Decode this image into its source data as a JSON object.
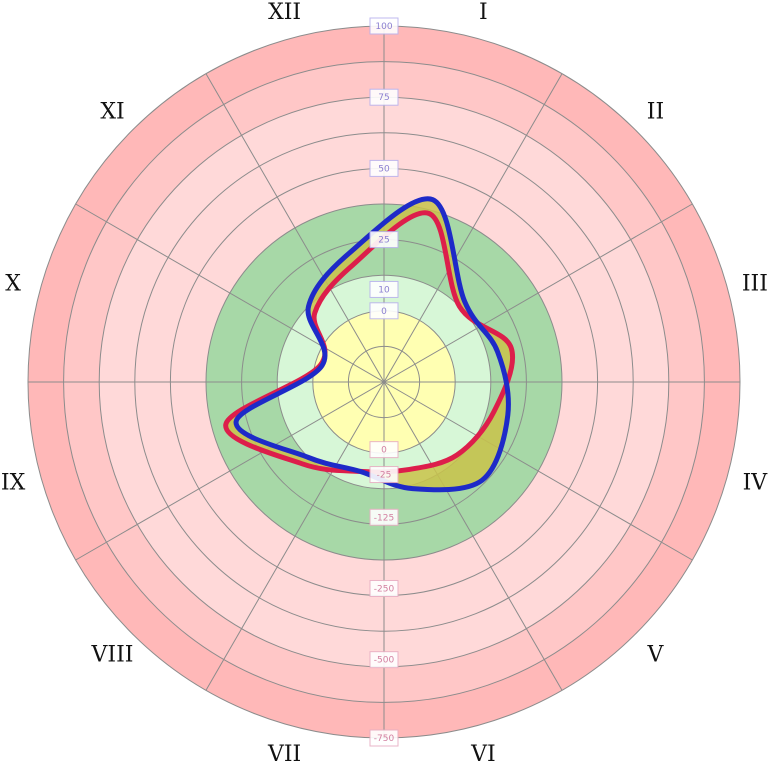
{
  "chart_data": {
    "type": "radar",
    "title": "",
    "axes": [
      "I",
      "II",
      "III",
      "IV",
      "V",
      "VI",
      "VII",
      "VIII",
      "IX",
      "X",
      "XI",
      "XII"
    ],
    "scale": {
      "levels": 10,
      "radial_tick_labels_upper": [
        "100",
        "75",
        "50",
        "25",
        "10",
        "0"
      ],
      "radial_tick_labels_lower": [
        "0",
        "-25",
        "-125",
        "-250",
        "-500",
        "-750"
      ]
    },
    "bands": [
      {
        "name": "outer",
        "from": 9,
        "to": 10,
        "color": "#ffb8b8"
      },
      {
        "name": "outer-mid",
        "from": 8,
        "to": 9,
        "color": "#ffc7c7"
      },
      {
        "name": "mid",
        "from": 5,
        "to": 8,
        "color": "#ffd9d9"
      },
      {
        "name": "green",
        "from": 3,
        "to": 5,
        "color": "#a7d8a7"
      },
      {
        "name": "lightgreen",
        "from": 2,
        "to": 3,
        "color": "#d7f7d7"
      },
      {
        "name": "core",
        "from": 0,
        "to": 2,
        "color": "#ffffb2"
      }
    ],
    "series": [
      {
        "color": "#dd1e4b",
        "values": [
          4.9,
          3.0,
          3.7,
          3.2,
          2.9,
          2.55,
          2.6,
          3.25,
          4.6,
          1.85,
          2.75,
          3.4
        ]
      },
      {
        "color": "#1e2ac8",
        "values": [
          5.3,
          3.2,
          3.3,
          3.6,
          3.9,
          3.1,
          2.6,
          3.0,
          4.3,
          1.8,
          3.0,
          3.75
        ]
      }
    ],
    "fill_between": "#c9c34a"
  }
}
